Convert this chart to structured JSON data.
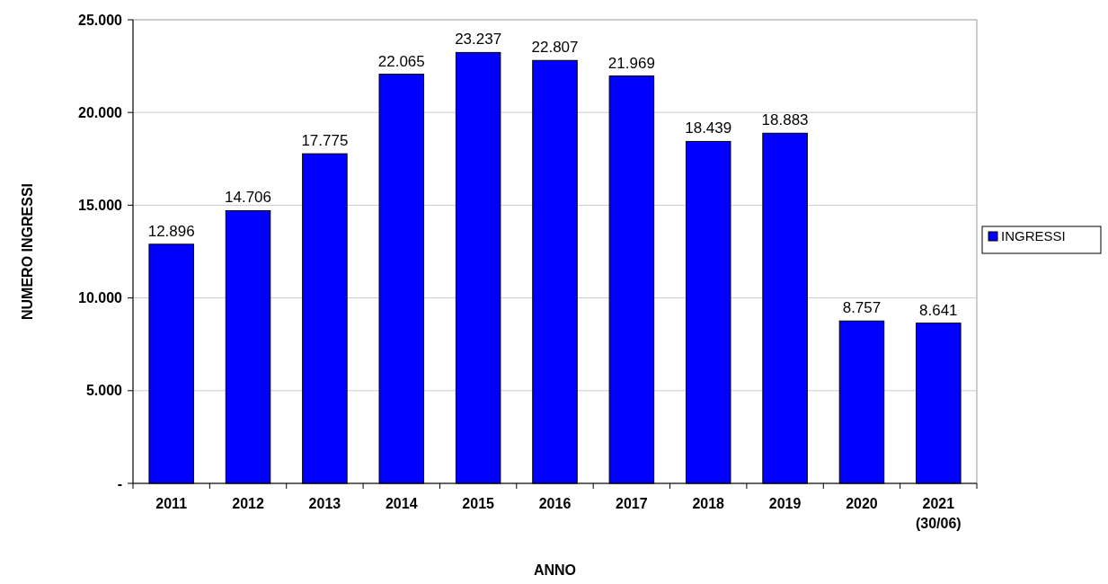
{
  "chart_data": {
    "type": "bar",
    "xlabel": "ANNO",
    "ylabel": "NUMERO INGRESSI",
    "categories": [
      "2011",
      "2012",
      "2013",
      "2014",
      "2015",
      "2016",
      "2017",
      "2018",
      "2019",
      "2020",
      "2021\n(30/06)"
    ],
    "series": [
      {
        "name": "INGRESSI",
        "color": "#0000ff",
        "values": [
          12896,
          14706,
          17775,
          22065,
          23237,
          22807,
          21969,
          18439,
          18883,
          8757,
          8641
        ],
        "value_labels": [
          "12.896",
          "14.706",
          "17.775",
          "22.065",
          "23.237",
          "22.807",
          "21.969",
          "18.439",
          "18.883",
          "8.757",
          "8.641"
        ]
      }
    ],
    "ylim": [
      0,
      25000
    ],
    "yticks": [
      {
        "value": 0,
        "label": "-"
      },
      {
        "value": 5000,
        "label": "5.000"
      },
      {
        "value": 10000,
        "label": "10.000"
      },
      {
        "value": 15000,
        "label": "15.000"
      },
      {
        "value": 20000,
        "label": "20.000"
      },
      {
        "value": 25000,
        "label": "25.000"
      }
    ],
    "grid": "y",
    "legend": "right"
  }
}
